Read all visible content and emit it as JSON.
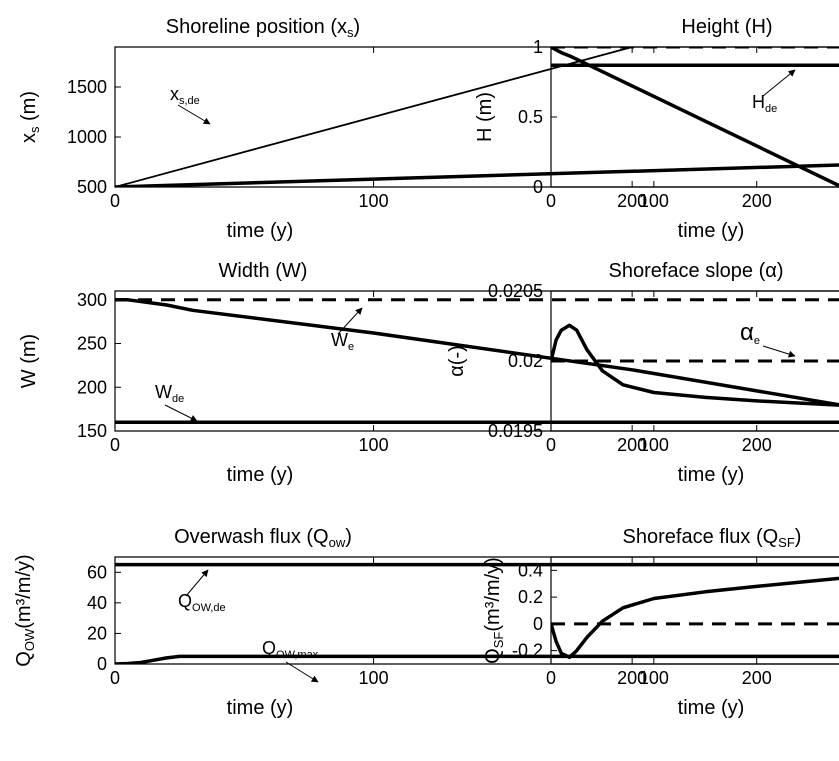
{
  "chart_data": [
    {
      "id": "shoreline",
      "type": "line",
      "title": "Shoreline position (x",
      "title_sub": "s",
      "title_end": ")",
      "xlabel": "time (y)",
      "ylabel_main": "x",
      "ylabel_sub": "s",
      "ylabel_end": " (m)",
      "xlim": [
        0,
        280
      ],
      "ylim": [
        500,
        1900
      ],
      "xticks": [
        0,
        100,
        200
      ],
      "yticks": [
        500,
        1000,
        1500
      ],
      "series": [
        {
          "x": [
            0,
            280
          ],
          "y": [
            500,
            720
          ],
          "style": "thick"
        },
        {
          "x": [
            0,
            200
          ],
          "y": [
            500,
            1900
          ],
          "style": "thin"
        }
      ],
      "annotations": [
        {
          "main": "x",
          "sub": "s,de"
        }
      ]
    },
    {
      "id": "height",
      "type": "line",
      "title": "Height (H)",
      "xlabel": "time (y)",
      "ylabel_main": "H (m)",
      "xlim": [
        0,
        280
      ],
      "ylim": [
        0,
        1.0
      ],
      "xticks": [
        0,
        100,
        200
      ],
      "yticks": [
        0,
        0.5,
        1
      ],
      "series": [
        {
          "x": [
            0,
            280
          ],
          "y": [
            1.0,
            1.0
          ],
          "style": "dashed"
        },
        {
          "x": [
            0,
            280
          ],
          "y": [
            0.87,
            0.87
          ],
          "style": "thick"
        },
        {
          "x": [
            0,
            5,
            10,
            20,
            280
          ],
          "y": [
            1.0,
            0.98,
            0.96,
            0.93,
            0.01
          ],
          "style": "thick"
        }
      ],
      "annotations": [
        {
          "main": "H",
          "sub": "de"
        }
      ]
    },
    {
      "id": "width",
      "type": "line",
      "title": "Width (W)",
      "xlabel": "time (y)",
      "ylabel_main": "W (m)",
      "xlim": [
        0,
        280
      ],
      "ylim": [
        150,
        310
      ],
      "xticks": [
        0,
        100,
        200
      ],
      "yticks": [
        150,
        200,
        250,
        300
      ],
      "series": [
        {
          "x": [
            0,
            280
          ],
          "y": [
            300,
            300
          ],
          "style": "dashed"
        },
        {
          "x": [
            0,
            280
          ],
          "y": [
            160,
            160
          ],
          "style": "thick"
        },
        {
          "x": [
            0,
            5,
            10,
            20,
            30,
            100,
            200,
            280
          ],
          "y": [
            300,
            300,
            298,
            294,
            288,
            262,
            220,
            180
          ],
          "style": "thick"
        }
      ],
      "annotations": [
        {
          "main": "W",
          "sub": "e"
        },
        {
          "main": "W",
          "sub": "de"
        }
      ]
    },
    {
      "id": "slope",
      "type": "line",
      "title": "Shoreface slope (α)",
      "xlabel": "time (y)",
      "ylabel_main": "α(-)",
      "xlim": [
        0,
        280
      ],
      "ylim": [
        0.0195,
        0.0205
      ],
      "xticks": [
        0,
        100,
        200
      ],
      "yticks": [
        0.0195,
        0.02,
        0.0205
      ],
      "ytick_labels": [
        "0.0195",
        "0.02",
        "0.0205"
      ],
      "series": [
        {
          "x": [
            0,
            280
          ],
          "y": [
            0.02,
            0.02
          ],
          "style": "dashed"
        },
        {
          "x": [
            0,
            5,
            10,
            18,
            25,
            35,
            50,
            70,
            100,
            150,
            200,
            280
          ],
          "y": [
            0.02,
            0.02015,
            0.02022,
            0.020255,
            0.02022,
            0.02008,
            0.01993,
            0.01983,
            0.019775,
            0.01974,
            0.019715,
            0.019685
          ],
          "style": "thick"
        }
      ],
      "annotations": [
        {
          "main": "α",
          "sub": "e"
        }
      ]
    },
    {
      "id": "overwash",
      "type": "line",
      "title": "Overwash flux (Q",
      "title_sub": "ow",
      "title_end": ")",
      "xlabel": "time (y)",
      "ylabel_main": "Q",
      "ylabel_sub": "OW",
      "ylabel_end": "(m³/m/y)",
      "xlim": [
        0,
        280
      ],
      "ylim": [
        0,
        70
      ],
      "xticks": [
        0,
        100,
        200
      ],
      "yticks": [
        0,
        20,
        40,
        60
      ],
      "series": [
        {
          "x": [
            0,
            280
          ],
          "y": [
            65,
            65
          ],
          "style": "thick"
        },
        {
          "x": [
            0,
            5,
            10,
            15,
            20,
            25,
            280
          ],
          "y": [
            0,
            0.3,
            1,
            2.5,
            4,
            5,
            5
          ],
          "style": "thick"
        }
      ],
      "annotations": [
        {
          "main": "Q",
          "sub": "OW,de"
        },
        {
          "main": "Q",
          "sub": "OW,max"
        }
      ]
    },
    {
      "id": "shoreface_flux",
      "type": "line",
      "title": "Shoreface flux (Q",
      "title_sub": "SF",
      "title_end": ")",
      "xlabel": "time (y)",
      "ylabel_main": "Q",
      "ylabel_sub": "SF",
      "ylabel_end": "(m³/m/y)",
      "xlim": [
        0,
        280
      ],
      "ylim": [
        -0.3,
        0.5
      ],
      "xticks": [
        0,
        100,
        200
      ],
      "yticks": [
        -0.2,
        0,
        0.2,
        0.4
      ],
      "ytick_labels": [
        "-0.2",
        "0",
        "0.2",
        "0.4"
      ],
      "series": [
        {
          "x": [
            0,
            280
          ],
          "y": [
            0,
            0
          ],
          "style": "dashed"
        },
        {
          "x": [
            0,
            5,
            10,
            18,
            25,
            35,
            50,
            70,
            100,
            150,
            200,
            280
          ],
          "y": [
            0,
            -0.13,
            -0.22,
            -0.25,
            -0.2,
            -0.1,
            0.02,
            0.12,
            0.19,
            0.24,
            0.28,
            0.34
          ],
          "style": "thick"
        }
      ],
      "annotations": []
    }
  ]
}
